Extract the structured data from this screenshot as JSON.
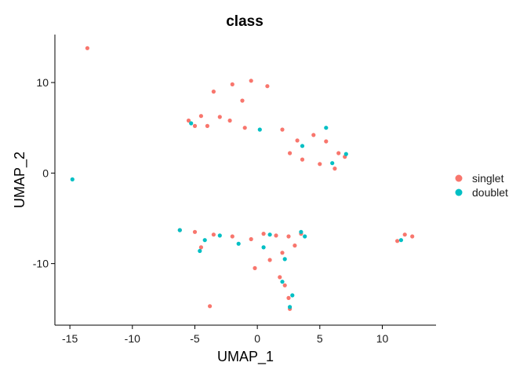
{
  "chart_data": {
    "type": "scatter",
    "title": "class",
    "xlabel": "UMAP_1",
    "ylabel": "UMAP_2",
    "xlim": [
      -16.2,
      14.3
    ],
    "ylim": [
      -16.8,
      15.3
    ],
    "xticks": [
      -15,
      -10,
      -5,
      0,
      5,
      10
    ],
    "yticks": [
      -10,
      0,
      10
    ],
    "grid": false,
    "legend_position": "right",
    "colors": {
      "singlet": "#F8766D",
      "doublet": "#00BFC4"
    },
    "series": [
      {
        "name": "singlet",
        "color": "#F8766D",
        "x": [
          -13.6,
          -3.5,
          -2.0,
          -0.5,
          0.8,
          -1.2,
          -4.5,
          -5.5,
          -5.0,
          -4.0,
          -3.0,
          -2.2,
          -1.0,
          2.0,
          3.2,
          4.5,
          5.5,
          6.5,
          7.0,
          2.6,
          3.6,
          5.0,
          6.2,
          -6.2,
          -5.0,
          -3.5,
          -2.0,
          -0.5,
          0.5,
          1.5,
          2.5,
          3.5,
          3.0,
          2.0,
          1.0,
          -0.2,
          -4.5,
          1.8,
          2.2,
          2.5,
          2.6,
          11.2,
          11.8,
          12.4,
          -3.8
        ],
        "y": [
          13.8,
          9.0,
          9.8,
          10.2,
          9.6,
          8.0,
          6.3,
          5.8,
          5.2,
          5.2,
          6.2,
          5.8,
          5.0,
          4.8,
          3.6,
          4.2,
          3.5,
          2.2,
          1.8,
          2.2,
          1.5,
          1.0,
          0.5,
          -6.3,
          -6.5,
          -6.8,
          -7.0,
          -7.3,
          -6.7,
          -6.9,
          -7.0,
          -6.7,
          -8.0,
          -8.8,
          -9.6,
          -10.5,
          -8.2,
          -11.5,
          -12.4,
          -13.8,
          -15.0,
          -7.5,
          -6.8,
          -7.0,
          -14.7
        ]
      },
      {
        "name": "doublet",
        "color": "#00BFC4",
        "x": [
          -14.8,
          -6.2,
          -4.2,
          -3.0,
          -1.5,
          0.5,
          2.2,
          3.5,
          3.8,
          2.6,
          2.8,
          5.5,
          6.0,
          7.1,
          3.6,
          0.2,
          -5.3,
          11.5,
          2.0,
          -4.6,
          1.0
        ],
        "y": [
          -0.7,
          -6.3,
          -7.4,
          -6.9,
          -7.8,
          -8.2,
          -9.5,
          -6.5,
          -7.0,
          -14.8,
          -13.5,
          5.0,
          1.1,
          2.1,
          3.0,
          4.8,
          5.5,
          -7.4,
          -12.0,
          -8.6,
          -6.8
        ]
      }
    ]
  }
}
